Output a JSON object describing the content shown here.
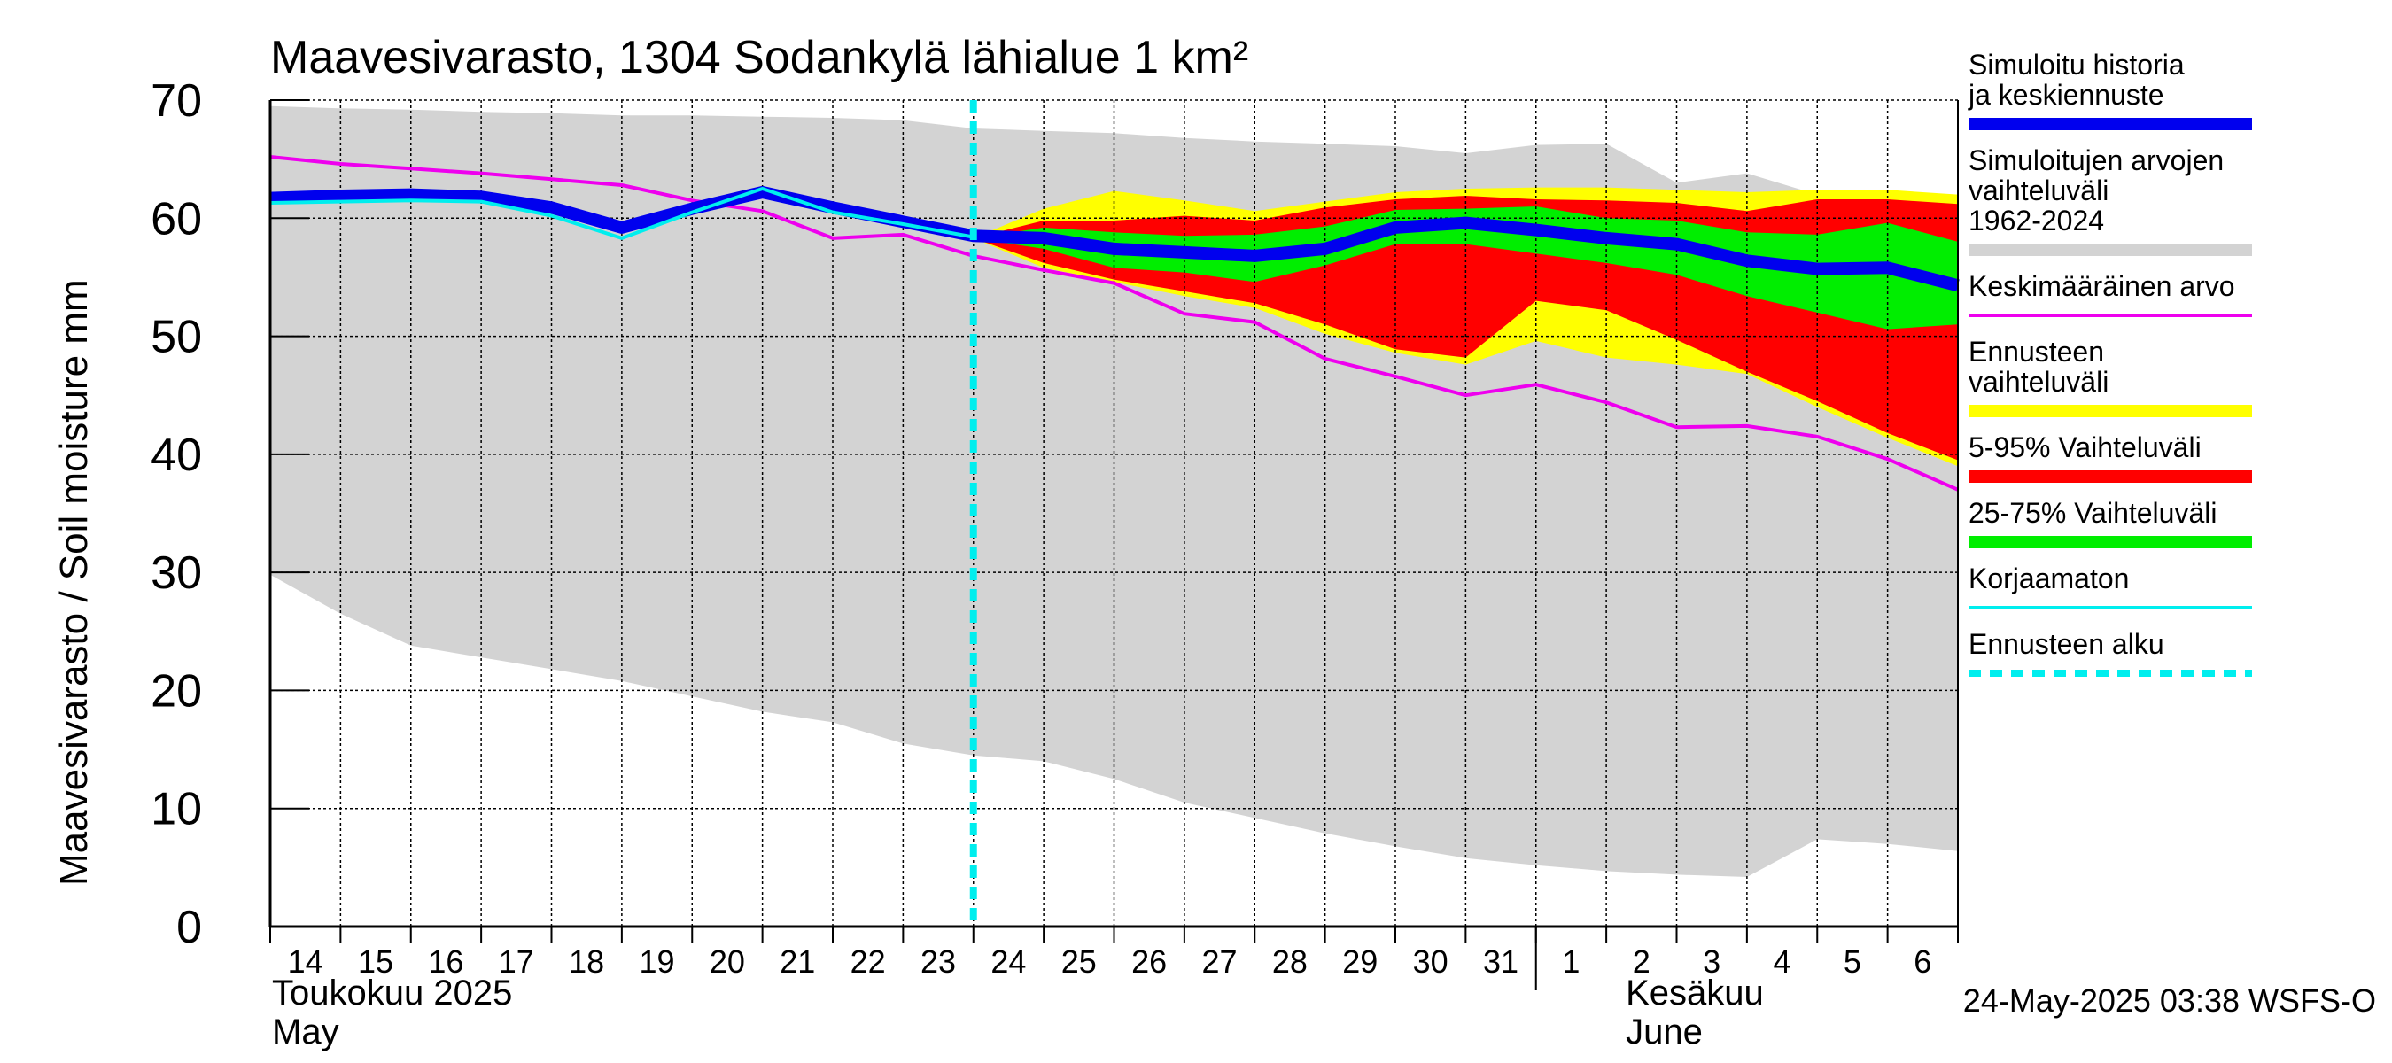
{
  "chart_data": {
    "type": "area",
    "title": "Maavesivarasto, 1304 Sodankylä lähialue 1 km²",
    "ylabel": "Maavesivarasto / Soil moisture   mm",
    "ylim": [
      0,
      70
    ],
    "yticks": [
      0,
      10,
      20,
      30,
      40,
      50,
      60,
      70
    ],
    "grid": true,
    "legend_position": "right",
    "x_unit": "day",
    "x_range": [
      0,
      24
    ],
    "x_day_labels": [
      "14",
      "15",
      "16",
      "17",
      "18",
      "19",
      "20",
      "21",
      "22",
      "23",
      "24",
      "25",
      "26",
      "27",
      "28",
      "29",
      "30",
      "31",
      "1",
      "2",
      "3",
      "4",
      "5",
      "6"
    ],
    "month_labels": [
      {
        "fi": "Toukokuu  2025",
        "en": "May"
      },
      {
        "fi": "Kesäkuu",
        "en": "June"
      }
    ],
    "forecast_start": 10,
    "timestamp": "24-May-2025 03:38 WSFS-O",
    "colors": {
      "history_range": "#d3d3d3",
      "forecast_range": "#ffff00",
      "p5_95": "#ff0000",
      "p25_75": "#00ee00",
      "simulated": "#0000ee",
      "mean": "#ee00ee",
      "uncorrected": "#00eeee",
      "forecast_start": "#00eeee"
    },
    "legend": [
      {
        "label": "Simuloitu historia ja keskiennuste",
        "color": "#0000ee",
        "style": "thick"
      },
      {
        "label": "Simuloitujen arvojen vaihteluväli 1962-2024",
        "color": "#d3d3d3",
        "style": "thick"
      },
      {
        "label": "Keskimääräinen arvo",
        "color": "#ee00ee",
        "style": "thin"
      },
      {
        "label": "Ennusteen vaihteluväli",
        "color": "#ffff00",
        "style": "thick"
      },
      {
        "label": "5-95% Vaihteluväli",
        "color": "#ff0000",
        "style": "thick"
      },
      {
        "label": "25-75% Vaihteluväli",
        "color": "#00ee00",
        "style": "thick"
      },
      {
        "label": "Korjaamaton",
        "color": "#00eeee",
        "style": "thin"
      },
      {
        "label": "Ennusteen alku",
        "color": "#00eeee",
        "style": "dashed"
      }
    ],
    "series": {
      "history_range": {
        "x": [
          0,
          1,
          2,
          3,
          4,
          5,
          6,
          7,
          8,
          9,
          10,
          11,
          12,
          13,
          14,
          15,
          16,
          17,
          18,
          19,
          20,
          21,
          22,
          23,
          24
        ],
        "upper": [
          69.5,
          69.3,
          69.2,
          69.0,
          68.9,
          68.7,
          68.7,
          68.6,
          68.5,
          68.3,
          67.6,
          67.4,
          67.2,
          66.8,
          66.5,
          66.3,
          66.1,
          65.5,
          66.2,
          66.3,
          63.0,
          63.8,
          62.0,
          62.0,
          61.5
        ],
        "lower": [
          29.8,
          26.5,
          23.8,
          22.8,
          21.8,
          20.8,
          19.5,
          18.2,
          17.3,
          15.5,
          14.5,
          14.0,
          12.5,
          10.5,
          9.2,
          7.9,
          6.8,
          5.8,
          5.2,
          4.7,
          4.4,
          4.2,
          7.4,
          7.0,
          6.4
        ]
      },
      "forecast_range": {
        "x": [
          10,
          11,
          12,
          13,
          14,
          15,
          16,
          17,
          18,
          19,
          20,
          21,
          22,
          23,
          24
        ],
        "upper": [
          58.3,
          60.8,
          62.3,
          61.5,
          60.6,
          61.4,
          62.2,
          62.5,
          62.6,
          62.6,
          62.4,
          62.2,
          62.4,
          62.4,
          62.0
        ],
        "lower": [
          58.3,
          55.8,
          54.6,
          53.4,
          52.4,
          50.2,
          48.6,
          47.6,
          49.6,
          48.2,
          47.6,
          46.8,
          44.0,
          41.4,
          39.0
        ]
      },
      "p5_95": {
        "x": [
          10,
          11,
          12,
          13,
          14,
          15,
          16,
          17,
          18,
          19,
          20,
          21,
          22,
          23,
          24
        ],
        "upper": [
          58.3,
          59.8,
          59.8,
          60.2,
          59.8,
          60.9,
          61.6,
          61.9,
          61.6,
          61.5,
          61.3,
          60.6,
          61.6,
          61.6,
          61.2
        ],
        "lower": [
          58.3,
          56.2,
          54.8,
          53.8,
          52.8,
          51.0,
          48.9,
          48.2,
          53.0,
          52.2,
          49.7,
          47.0,
          44.5,
          41.8,
          39.5
        ]
      },
      "p25_75": {
        "x": [
          10,
          11,
          12,
          13,
          14,
          15,
          16,
          17,
          18,
          19,
          20,
          21,
          22,
          23,
          24
        ],
        "upper": [
          58.3,
          59.2,
          58.8,
          58.5,
          58.6,
          59.3,
          60.7,
          60.8,
          61.0,
          60.0,
          59.8,
          58.8,
          58.6,
          59.6,
          58.0
        ],
        "lower": [
          58.3,
          57.4,
          55.8,
          55.4,
          54.6,
          56.0,
          57.8,
          57.8,
          57.0,
          56.2,
          55.2,
          53.4,
          52.0,
          50.6,
          51.0
        ]
      },
      "simulated": {
        "x": [
          0,
          1,
          2,
          3,
          4,
          5,
          6,
          7,
          8,
          9,
          10,
          11,
          12,
          13,
          14,
          15,
          16,
          17,
          18,
          19,
          20,
          21,
          22,
          23,
          24
        ],
        "y": [
          61.7,
          61.9,
          62.0,
          61.8,
          60.9,
          59.2,
          60.8,
          62.2,
          60.9,
          59.7,
          58.5,
          58.3,
          57.4,
          57.1,
          56.8,
          57.4,
          59.2,
          59.6,
          59.0,
          58.3,
          57.8,
          56.4,
          55.7,
          55.8,
          54.3
        ]
      },
      "uncorrected": {
        "x": [
          0,
          1,
          2,
          3,
          4,
          5,
          6,
          7,
          8,
          9,
          10
        ],
        "y": [
          61.3,
          61.4,
          61.5,
          61.4,
          60.2,
          58.3,
          60.5,
          62.5,
          60.5,
          59.5,
          58.4
        ]
      },
      "mean": {
        "x": [
          0,
          1,
          2,
          3,
          4,
          5,
          6,
          7,
          8,
          9,
          10,
          11,
          12,
          13,
          14,
          15,
          16,
          17,
          18,
          19,
          20,
          21,
          22,
          23,
          24
        ],
        "y": [
          65.2,
          64.6,
          64.2,
          63.8,
          63.3,
          62.8,
          61.5,
          60.6,
          58.3,
          58.6,
          56.8,
          55.6,
          54.5,
          51.9,
          51.2,
          48.1,
          46.6,
          45.0,
          45.9,
          44.4,
          42.3,
          42.4,
          41.5,
          39.6,
          37.0
        ]
      }
    }
  }
}
